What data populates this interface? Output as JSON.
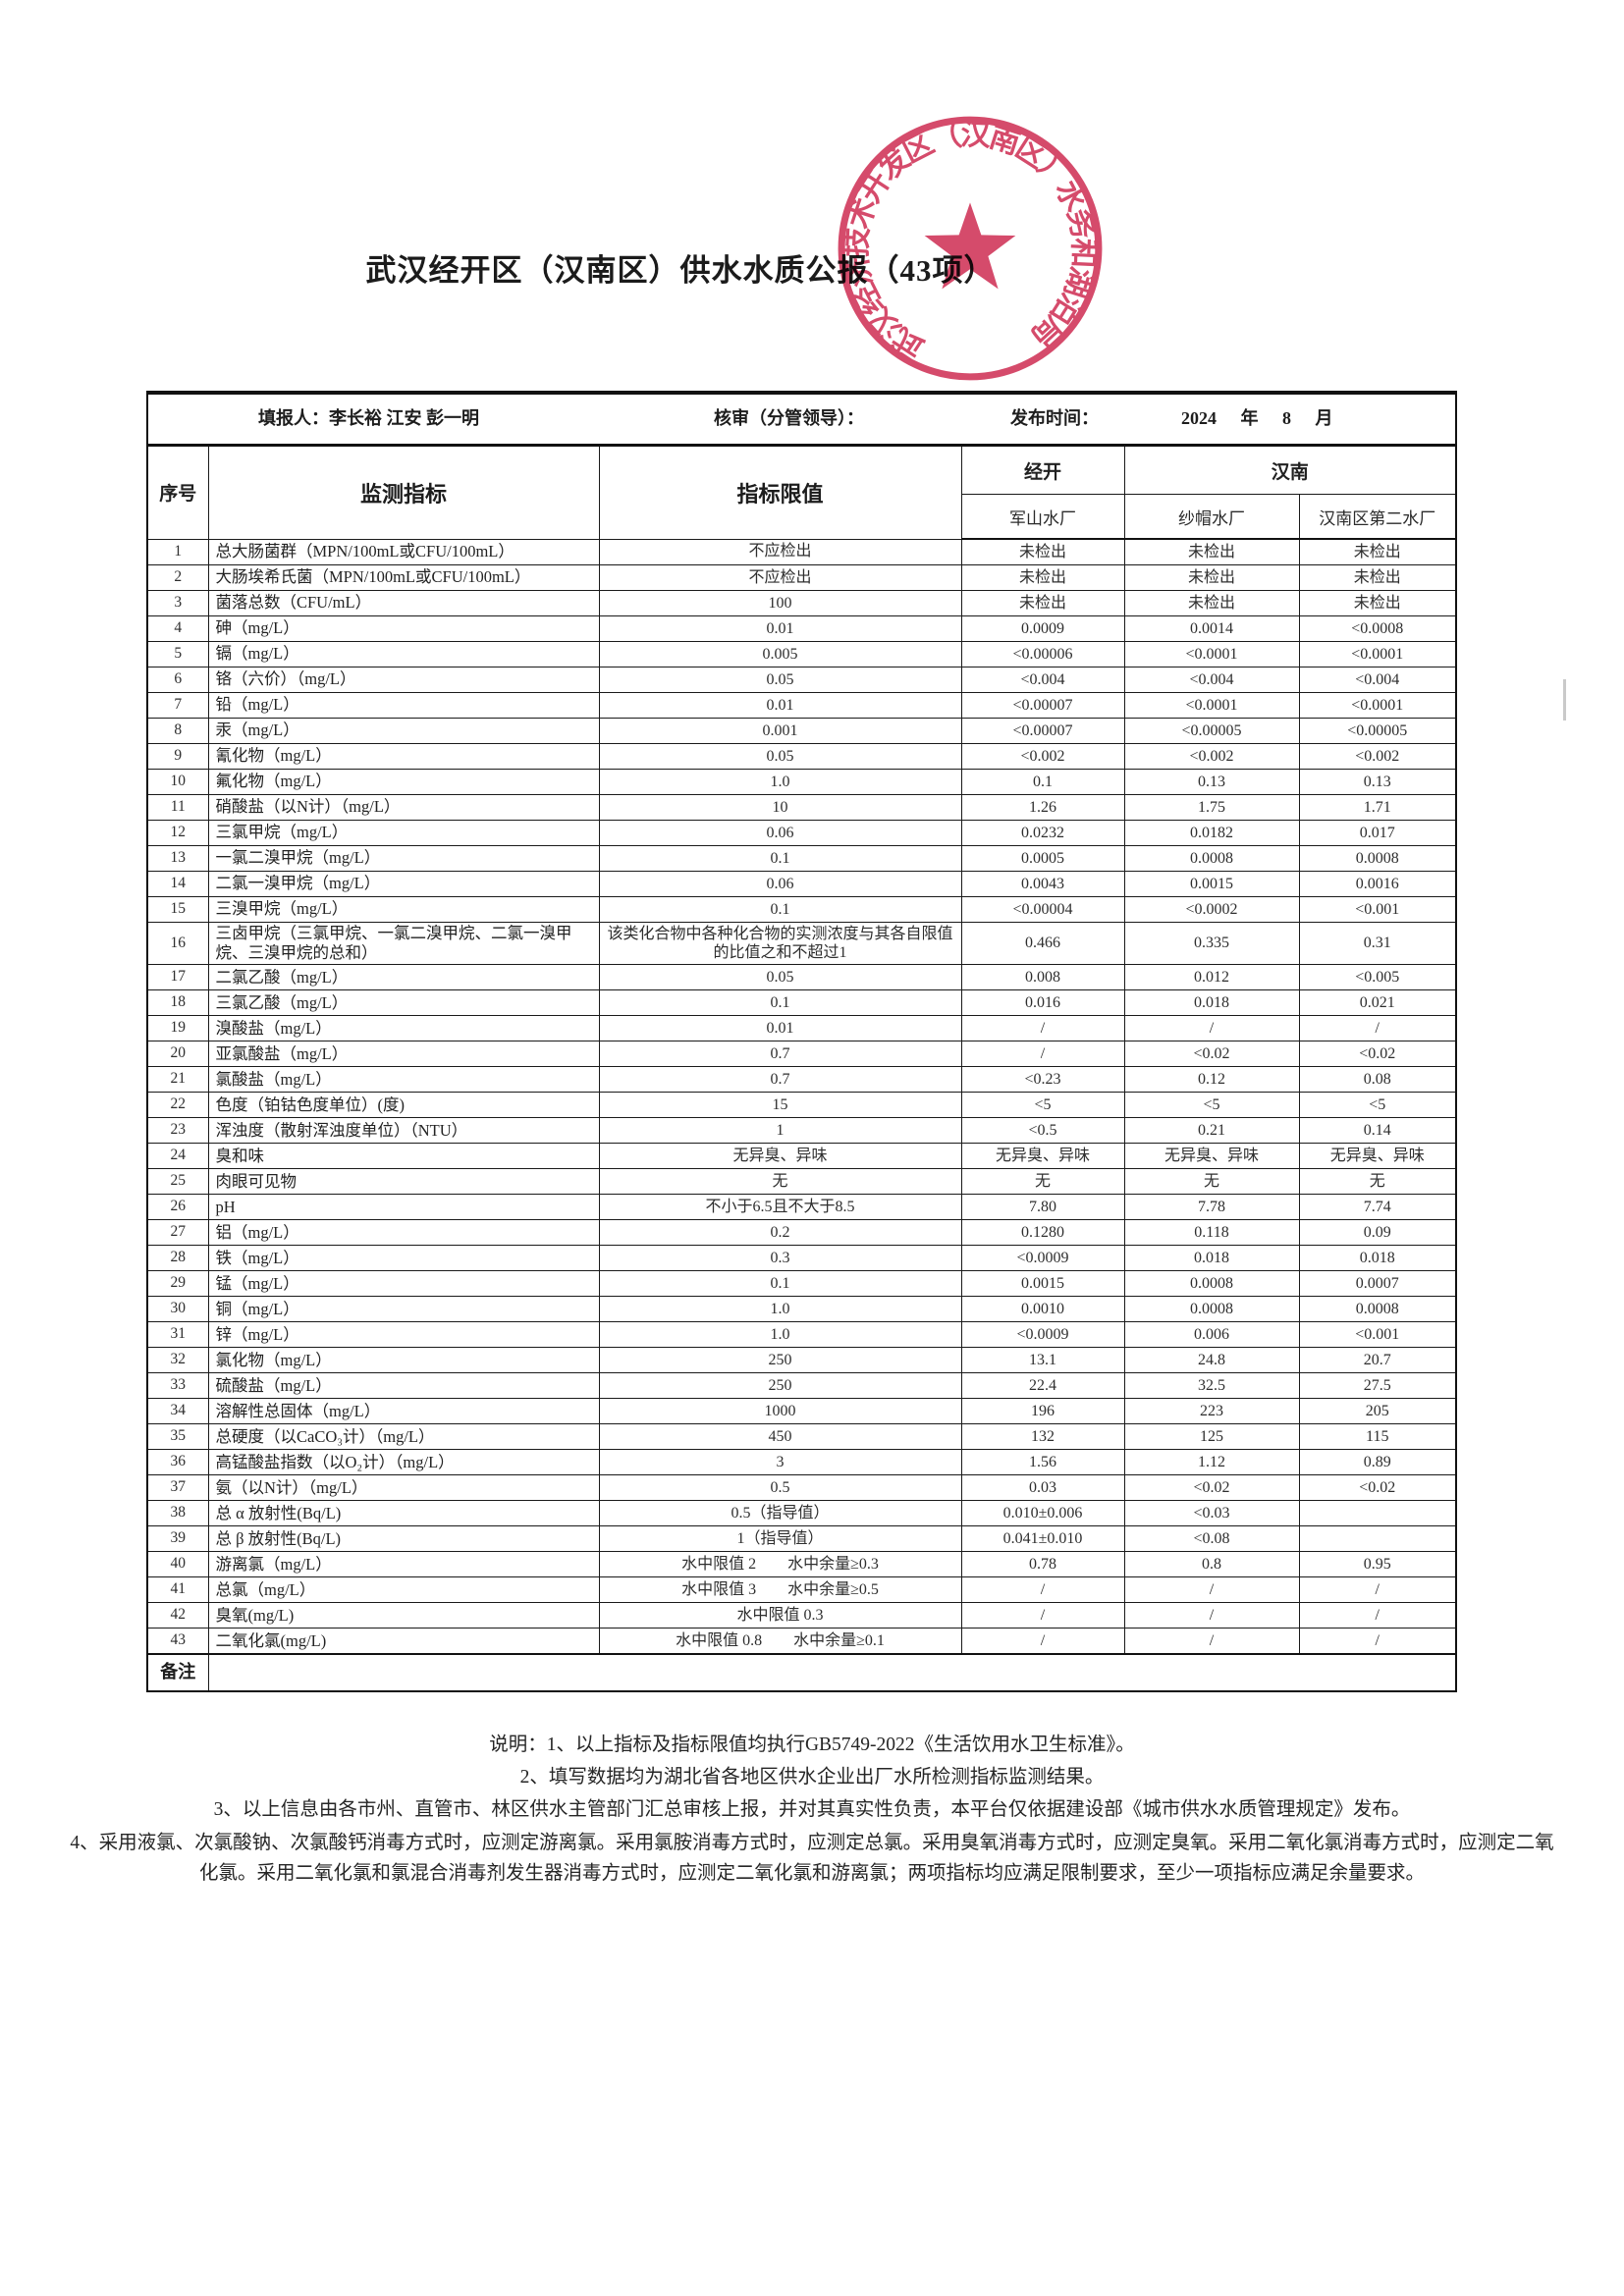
{
  "title": "武汉经开区（汉南区）供水水质公报（43项）",
  "admin": {
    "filler": "填报人：李长裕 江安 彭一明",
    "reviewer": "核审（分管领导）：",
    "publish_label": "发布时间：",
    "publish_value": "2024 年 8 月"
  },
  "stamp": {
    "text": "武汉经济技术开发区（汉南区）水务和湖泊局",
    "color": "#d23b5e"
  },
  "table": {
    "col_no": "序号",
    "col_indicator": "监测指标",
    "col_limit": "指标限值",
    "group_jingkai": "经开",
    "group_hannan": "汉南",
    "plant1": "军山水厂",
    "plant2": "纱帽水厂",
    "plant3": "汉南区第二水厂",
    "remark_label": "备注",
    "rows": [
      {
        "no": "1",
        "name": "总大肠菌群（MPN/100mL或CFU/100mL）",
        "limit": "不应检出",
        "v1": "未检出",
        "v2": "未检出",
        "v3": "未检出"
      },
      {
        "no": "2",
        "name": "大肠埃希氏菌（MPN/100mL或CFU/100mL）",
        "limit": "不应检出",
        "v1": "未检出",
        "v2": "未检出",
        "v3": "未检出"
      },
      {
        "no": "3",
        "name": "菌落总数（CFU/mL）",
        "limit": "100",
        "v1": "未检出",
        "v2": "未检出",
        "v3": "未检出"
      },
      {
        "no": "4",
        "name": "砷（mg/L）",
        "limit": "0.01",
        "v1": "0.0009",
        "v2": "0.0014",
        "v3": "<0.0008"
      },
      {
        "no": "5",
        "name": "镉（mg/L）",
        "limit": "0.005",
        "v1": "<0.00006",
        "v2": "<0.0001",
        "v3": "<0.0001"
      },
      {
        "no": "6",
        "name": "铬（六价）（mg/L）",
        "limit": "0.05",
        "v1": "<0.004",
        "v2": "<0.004",
        "v3": "<0.004"
      },
      {
        "no": "7",
        "name": "铅（mg/L）",
        "limit": "0.01",
        "v1": "<0.00007",
        "v2": "<0.0001",
        "v3": "<0.0001"
      },
      {
        "no": "8",
        "name": "汞（mg/L）",
        "limit": "0.001",
        "v1": "<0.00007",
        "v2": "<0.00005",
        "v3": "<0.00005"
      },
      {
        "no": "9",
        "name": "氰化物（mg/L）",
        "limit": "0.05",
        "v1": "<0.002",
        "v2": "<0.002",
        "v3": "<0.002"
      },
      {
        "no": "10",
        "name": "氟化物（mg/L）",
        "limit": "1.0",
        "v1": "0.1",
        "v2": "0.13",
        "v3": "0.13"
      },
      {
        "no": "11",
        "name": "硝酸盐（以N计）（mg/L）",
        "limit": "10",
        "v1": "1.26",
        "v2": "1.75",
        "v3": "1.71"
      },
      {
        "no": "12",
        "name": "三氯甲烷（mg/L）",
        "limit": "0.06",
        "v1": "0.0232",
        "v2": "0.0182",
        "v3": "0.017"
      },
      {
        "no": "13",
        "name": "一氯二溴甲烷（mg/L）",
        "limit": "0.1",
        "v1": "0.0005",
        "v2": "0.0008",
        "v3": "0.0008"
      },
      {
        "no": "14",
        "name": "二氯一溴甲烷（mg/L）",
        "limit": "0.06",
        "v1": "0.0043",
        "v2": "0.0015",
        "v3": "0.0016"
      },
      {
        "no": "15",
        "name": "三溴甲烷（mg/L）",
        "limit": "0.1",
        "v1": "<0.00004",
        "v2": "<0.0002",
        "v3": "<0.001"
      },
      {
        "no": "16",
        "name": "三卤甲烷（三氯甲烷、一氯二溴甲烷、二氯一溴甲烷、三溴甲烷的总和）",
        "limit": "该类化合物中各种化合物的实测浓度与其各自限值的比值之和不超过1",
        "v1": "0.466",
        "v2": "0.335",
        "v3": "0.31"
      },
      {
        "no": "17",
        "name": "二氯乙酸（mg/L）",
        "limit": "0.05",
        "v1": "0.008",
        "v2": "0.012",
        "v3": "<0.005"
      },
      {
        "no": "18",
        "name": "三氯乙酸（mg/L）",
        "limit": "0.1",
        "v1": "0.016",
        "v2": "0.018",
        "v3": "0.021"
      },
      {
        "no": "19",
        "name": "溴酸盐（mg/L）",
        "limit": "0.01",
        "v1": "/",
        "v2": "/",
        "v3": "/"
      },
      {
        "no": "20",
        "name": "亚氯酸盐（mg/L）",
        "limit": "0.7",
        "v1": "/",
        "v2": "<0.02",
        "v3": "<0.02"
      },
      {
        "no": "21",
        "name": "氯酸盐（mg/L）",
        "limit": "0.7",
        "v1": "<0.23",
        "v2": "0.12",
        "v3": "0.08"
      },
      {
        "no": "22",
        "name": "色度（铂钴色度单位）(度)",
        "limit": "15",
        "v1": "<5",
        "v2": "<5",
        "v3": "<5"
      },
      {
        "no": "23",
        "name": "浑浊度（散射浑浊度单位）（NTU）",
        "limit": "1",
        "v1": "<0.5",
        "v2": "0.21",
        "v3": "0.14"
      },
      {
        "no": "24",
        "name": "臭和味",
        "limit": "无异臭、异味",
        "v1": "无异臭、异味",
        "v2": "无异臭、异味",
        "v3": "无异臭、异味"
      },
      {
        "no": "25",
        "name": "肉眼可见物",
        "limit": "无",
        "v1": "无",
        "v2": "无",
        "v3": "无"
      },
      {
        "no": "26",
        "name": "pH",
        "limit": "不小于6.5且不大于8.5",
        "v1": "7.80",
        "v2": "7.78",
        "v3": "7.74"
      },
      {
        "no": "27",
        "name": "铝（mg/L）",
        "limit": "0.2",
        "v1": "0.1280",
        "v2": "0.118",
        "v3": "0.09"
      },
      {
        "no": "28",
        "name": "铁（mg/L）",
        "limit": "0.3",
        "v1": "<0.0009",
        "v2": "0.018",
        "v3": "0.018"
      },
      {
        "no": "29",
        "name": "锰（mg/L）",
        "limit": "0.1",
        "v1": "0.0015",
        "v2": "0.0008",
        "v3": "0.0007"
      },
      {
        "no": "30",
        "name": "铜（mg/L）",
        "limit": "1.0",
        "v1": "0.0010",
        "v2": "0.0008",
        "v3": "0.0008"
      },
      {
        "no": "31",
        "name": "锌（mg/L）",
        "limit": "1.0",
        "v1": "<0.0009",
        "v2": "0.006",
        "v3": "<0.001"
      },
      {
        "no": "32",
        "name": "氯化物（mg/L）",
        "limit": "250",
        "v1": "13.1",
        "v2": "24.8",
        "v3": "20.7"
      },
      {
        "no": "33",
        "name": "硫酸盐（mg/L）",
        "limit": "250",
        "v1": "22.4",
        "v2": "32.5",
        "v3": "27.5"
      },
      {
        "no": "34",
        "name": "溶解性总固体（mg/L）",
        "limit": "1000",
        "v1": "196",
        "v2": "223",
        "v3": "205"
      },
      {
        "no": "35",
        "name": "总硬度（以CaCO₃计）（mg/L）",
        "limit": "450",
        "v1": "132",
        "v2": "125",
        "v3": "115"
      },
      {
        "no": "36",
        "name": "高锰酸盐指数（以O₂计）（mg/L）",
        "limit": "3",
        "v1": "1.56",
        "v2": "1.12",
        "v3": "0.89"
      },
      {
        "no": "37",
        "name": "氨（以N计）（mg/L）",
        "limit": "0.5",
        "v1": "0.03",
        "v2": "<0.02",
        "v3": "<0.02"
      },
      {
        "no": "38",
        "name": "总 α 放射性(Bq/L)",
        "limit": "0.5（指导值）",
        "v1": "0.010±0.006",
        "v2": "<0.03",
        "v3": ""
      },
      {
        "no": "39",
        "name": "总 β 放射性(Bq/L)",
        "limit": "1（指导值）",
        "v1": "0.041±0.010",
        "v2": "<0.08",
        "v3": ""
      },
      {
        "no": "40",
        "name": "游离氯（mg/L）",
        "limit": "水中限值 2　　水中余量≥0.3",
        "v1": "0.78",
        "v2": "0.8",
        "v3": "0.95"
      },
      {
        "no": "41",
        "name": "总氯（mg/L）",
        "limit": "水中限值 3　　水中余量≥0.5",
        "v1": "/",
        "v2": "/",
        "v3": "/"
      },
      {
        "no": "42",
        "name": "臭氧(mg/L)",
        "limit": "水中限值 0.3",
        "v1": "/",
        "v2": "/",
        "v3": "/"
      },
      {
        "no": "43",
        "name": "二氧化氯(mg/L)",
        "limit": "水中限值 0.8　　水中余量≥0.1",
        "v1": "/",
        "v2": "/",
        "v3": "/"
      }
    ]
  },
  "notes": [
    "说明：1、以上指标及指标限值均执行GB5749-2022《生活饮用水卫生标准》。",
    "2、填写数据均为湖北省各地区供水企业出厂水所检测指标监测结果。",
    "3、以上信息由各市州、直管市、林区供水主管部门汇总审核上报，并对其真实性负责，本平台仅依据建设部《城市供水水质管理规定》发布。",
    "4、采用液氯、次氯酸钠、次氯酸钙消毒方式时，应测定游离氯。采用氯胺消毒方式时，应测定总氯。采用臭氧消毒方式时，应测定臭氧。采用二氧化氯消毒方式时，应测定二氧化氯。采用二氧化氯和氯混合消毒剂发生器消毒方式时，应测定二氧化氯和游离氯；两项指标均应满足限制要求，至少一项指标应满足余量要求。"
  ]
}
